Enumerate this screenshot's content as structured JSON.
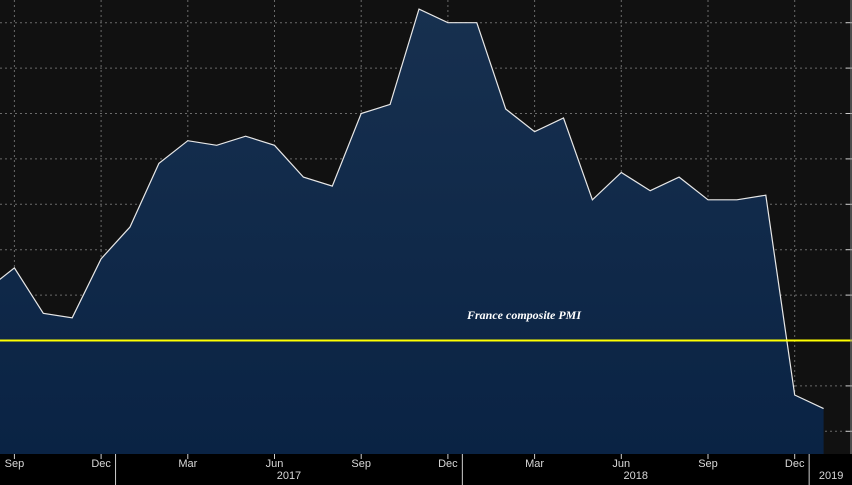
{
  "chart_data": {
    "type": "area",
    "title": "",
    "xlabel": "",
    "ylabel": "",
    "annotation": "France composite PMI",
    "x": [
      "2016-08",
      "2016-09",
      "2016-10",
      "2016-11",
      "2016-12",
      "2017-01",
      "2017-02",
      "2017-03",
      "2017-04",
      "2017-05",
      "2017-06",
      "2017-07",
      "2017-08",
      "2017-09",
      "2017-10",
      "2017-11",
      "2017-12",
      "2018-01",
      "2018-02",
      "2018-03",
      "2018-04",
      "2018-05",
      "2018-06",
      "2018-07",
      "2018-08",
      "2018-09",
      "2018-10",
      "2018-11",
      "2018-12",
      "2019-01"
    ],
    "series": [
      {
        "name": "",
        "values": [
          51.1,
          51.6,
          50.6,
          50.5,
          51.8,
          52.5,
          53.9,
          54.4,
          54.3,
          54.5,
          54.3,
          53.6,
          53.4,
          55.0,
          55.2,
          57.3,
          57.0,
          57.0,
          55.1,
          54.6,
          54.9,
          53.1,
          53.7,
          53.3,
          53.6,
          53.1,
          53.1,
          53.2,
          48.8,
          48.5
        ]
      }
    ],
    "threshold": 50.0,
    "ylim": [
      47.5,
      57.5
    ],
    "month_labels": [
      "Sep",
      "Dec",
      "Mar",
      "Jun",
      "Sep",
      "Dec",
      "Mar",
      "Jun",
      "Sep",
      "Dec"
    ],
    "year_labels": [
      "2017",
      "2018",
      "2019"
    ],
    "grid": true,
    "colors": {
      "background": "#111111",
      "area_fill_top": "#17304f",
      "area_fill_bottom": "#0a2344",
      "line": "#e8e8e8",
      "threshold": "#ffff00",
      "grid": "#6a6a6a"
    }
  }
}
